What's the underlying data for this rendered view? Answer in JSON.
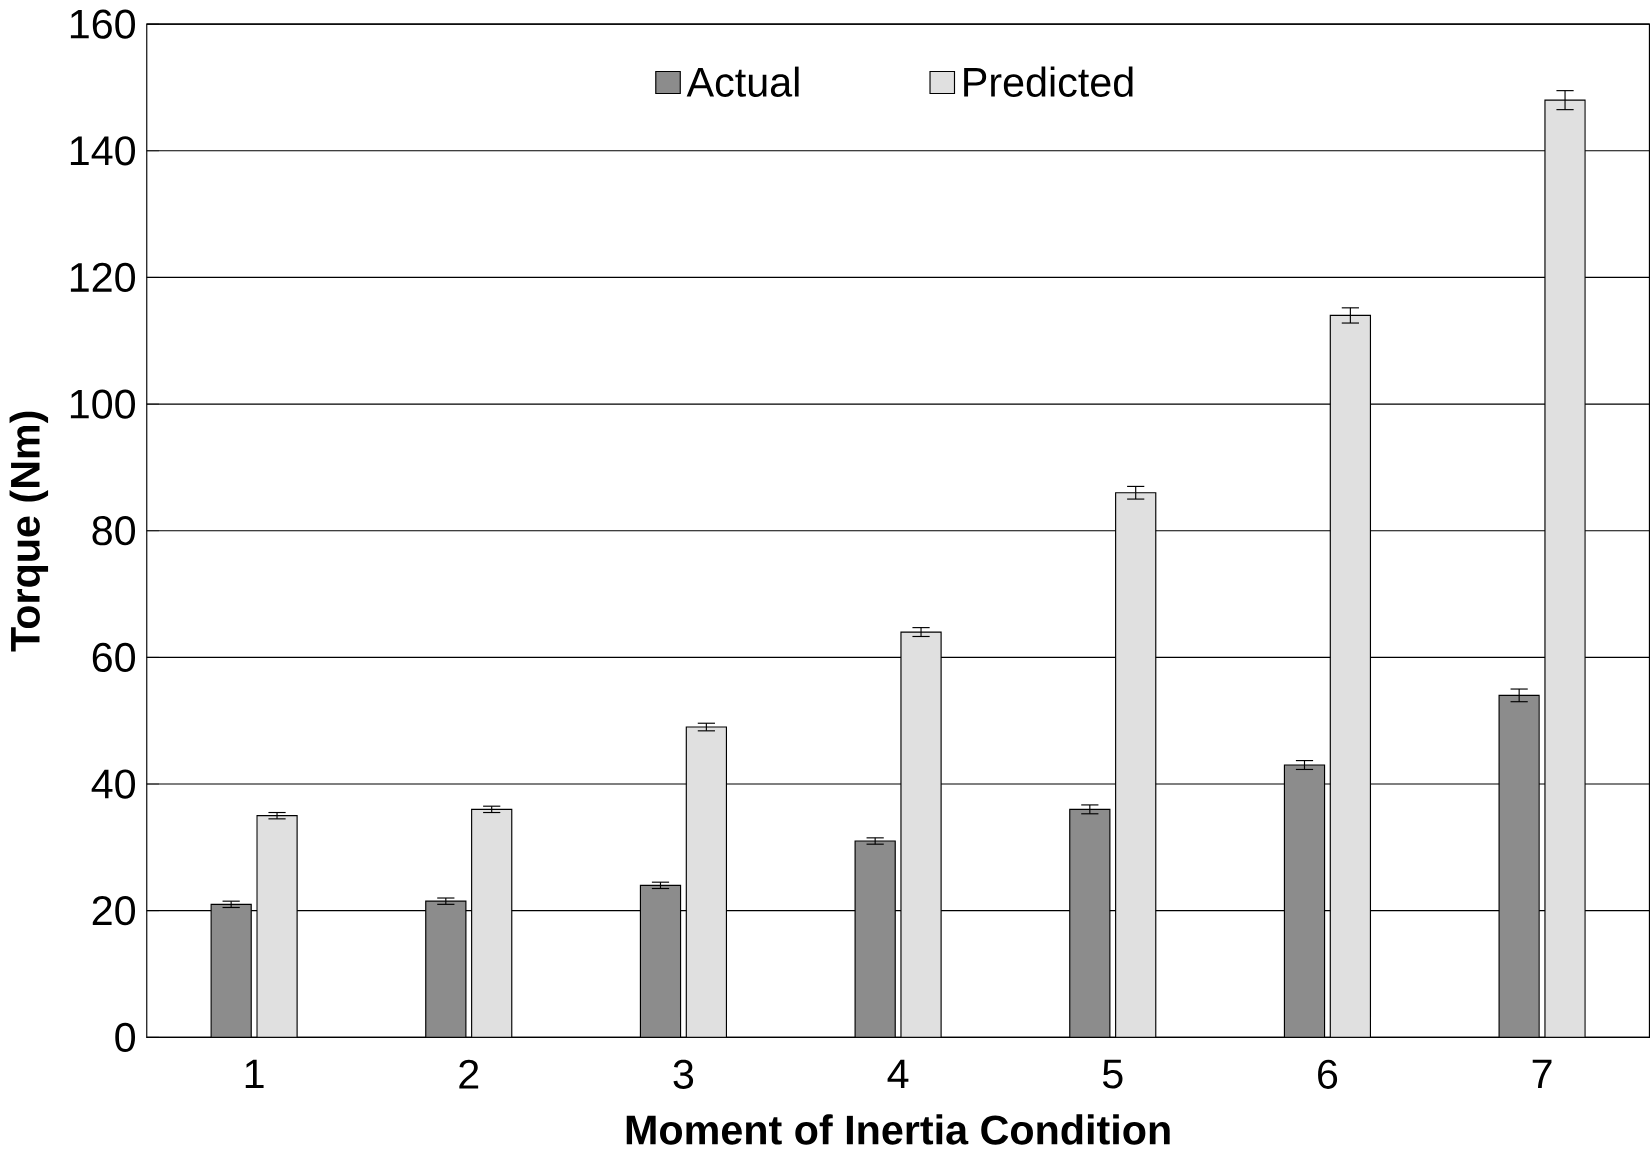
{
  "chart_data": {
    "type": "bar",
    "xlabel": "Moment of Inertia Condition",
    "ylabel": "Torque (Nm)",
    "categories": [
      "1",
      "2",
      "3",
      "4",
      "5",
      "6",
      "7"
    ],
    "series": [
      {
        "name": "Actual",
        "color": "#8c8c8c",
        "values": [
          21,
          21.5,
          24,
          31,
          36,
          43,
          54
        ],
        "errors": [
          0.5,
          0.5,
          0.5,
          0.5,
          0.7,
          0.7,
          1
        ]
      },
      {
        "name": "Predicted",
        "color": "#e0e0e0",
        "values": [
          35,
          36,
          49,
          64,
          86,
          114,
          148
        ],
        "errors": [
          0.5,
          0.5,
          0.6,
          0.7,
          1,
          1.2,
          1.5
        ]
      }
    ],
    "ylim": [
      0,
      160
    ],
    "yticks": [
      0,
      20,
      40,
      60,
      80,
      100,
      120,
      140,
      160
    ],
    "grid": "y",
    "legend": "top"
  }
}
